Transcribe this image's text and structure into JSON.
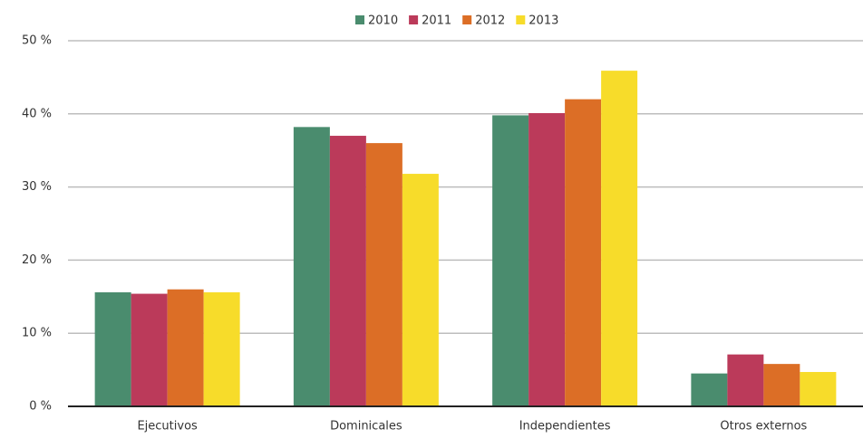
{
  "chart_data": {
    "type": "bar",
    "categories": [
      "Ejecutivos",
      "Dominicales",
      "Independientes",
      "Otros externos"
    ],
    "series": [
      {
        "name": "2010",
        "color": "#4a8c6e",
        "values": [
          15.6,
          38.2,
          39.8,
          4.5
        ]
      },
      {
        "name": "2011",
        "color": "#bb3a5a",
        "values": [
          15.4,
          37.0,
          40.1,
          7.1
        ]
      },
      {
        "name": "2012",
        "color": "#dc6e26",
        "values": [
          16.0,
          36.0,
          42.0,
          5.8
        ]
      },
      {
        "name": "2013",
        "color": "#f7dc2a",
        "values": [
          15.6,
          31.8,
          45.9,
          4.7
        ]
      }
    ],
    "ylim": [
      0,
      50
    ],
    "yticks": [
      {
        "value": 0,
        "label": "0 %"
      },
      {
        "value": 10,
        "label": "10 %"
      },
      {
        "value": 20,
        "label": "20 %"
      },
      {
        "value": 30,
        "label": "30 %"
      },
      {
        "value": 40,
        "label": "40 %"
      },
      {
        "value": 50,
        "label": "50 %"
      }
    ],
    "grid": true,
    "legend": "top"
  }
}
